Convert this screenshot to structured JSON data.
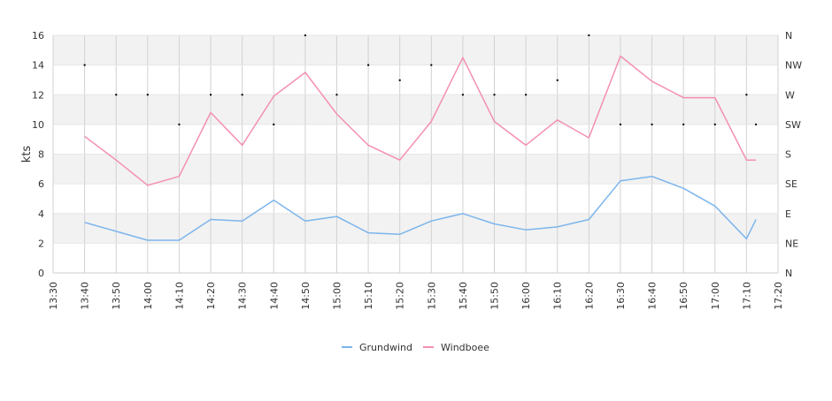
{
  "chart_data": {
    "type": "line",
    "ylabel": "kts",
    "ylim": [
      0,
      16
    ],
    "yticks": [
      0,
      2,
      4,
      6,
      8,
      10,
      12,
      14,
      16
    ],
    "xlim": [
      "13:30",
      "17:20"
    ],
    "xticks": [
      "13:30",
      "13:40",
      "13:50",
      "14:00",
      "14:10",
      "14:20",
      "14:30",
      "14:40",
      "14:50",
      "15:00",
      "15:10",
      "15:20",
      "15:30",
      "15:40",
      "15:50",
      "16:00",
      "16:10",
      "16:20",
      "16:30",
      "16:40",
      "16:50",
      "17:00",
      "17:10",
      "17:20"
    ],
    "right_axis": {
      "ticks": [
        "N",
        "NW",
        "W",
        "SW",
        "S",
        "SE",
        "E",
        "NE",
        "N"
      ],
      "range_deg": [
        0,
        360
      ]
    },
    "grid": true,
    "band_colors": [
      "#ffffff",
      "#f2f2f2"
    ],
    "legend_position": "bottom-center",
    "series": [
      {
        "name": "Grundwind",
        "color": "#7cb5ec",
        "x": [
          "13:40",
          "13:50",
          "14:00",
          "14:10",
          "14:20",
          "14:30",
          "14:40",
          "14:50",
          "15:00",
          "15:10",
          "15:20",
          "15:30",
          "15:40",
          "15:50",
          "16:00",
          "16:10",
          "16:20",
          "16:30",
          "16:40",
          "16:50",
          "17:00",
          "17:10",
          "17:13"
        ],
        "values": [
          3.4,
          2.8,
          2.2,
          2.2,
          3.6,
          3.5,
          4.9,
          3.5,
          3.8,
          2.7,
          2.6,
          3.5,
          4.0,
          3.3,
          2.9,
          3.1,
          3.6,
          6.2,
          6.5,
          5.7,
          4.5,
          2.3,
          3.6
        ]
      },
      {
        "name": "Windboee",
        "color": "#f48fb1",
        "x": [
          "13:40",
          "13:50",
          "14:00",
          "14:10",
          "14:20",
          "14:30",
          "14:40",
          "14:50",
          "15:00",
          "15:10",
          "15:20",
          "15:30",
          "15:40",
          "15:50",
          "16:00",
          "16:10",
          "16:20",
          "16:30",
          "16:40",
          "16:50",
          "17:00",
          "17:10",
          "17:13"
        ],
        "values": [
          9.2,
          7.6,
          5.9,
          6.5,
          10.8,
          8.6,
          11.9,
          13.5,
          10.7,
          8.6,
          7.6,
          10.2,
          14.5,
          10.2,
          8.6,
          10.3,
          9.1,
          14.6,
          12.9,
          11.8,
          11.8,
          7.6,
          7.6
        ]
      }
    ],
    "direction_markers": {
      "color": "#000000",
      "x": [
        "13:40",
        "13:50",
        "14:00",
        "14:10",
        "14:20",
        "14:30",
        "14:40",
        "14:50",
        "15:00",
        "15:10",
        "15:20",
        "15:30",
        "15:40",
        "15:50",
        "16:00",
        "16:10",
        "16:20",
        "16:30",
        "16:40",
        "16:50",
        "17:00",
        "17:10",
        "17:13"
      ],
      "values_deg": [
        315,
        270,
        270,
        225,
        270,
        270,
        225,
        360,
        270,
        315,
        292,
        315,
        270,
        270,
        270,
        292,
        360,
        225,
        225,
        225,
        225,
        270,
        225
      ]
    }
  }
}
